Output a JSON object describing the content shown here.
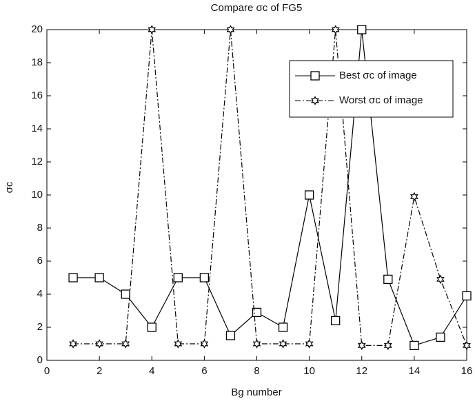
{
  "chart_data": {
    "type": "line",
    "title": "Compare σc of FG5",
    "x_label": "Bg number",
    "y_label": "σc",
    "x": [
      1,
      2,
      3,
      4,
      5,
      6,
      7,
      8,
      9,
      10,
      11,
      12,
      13,
      14,
      15,
      16
    ],
    "series": [
      {
        "name": "Best σc of image",
        "color": "#000000",
        "dash": "solid",
        "marker": "square",
        "values": [
          5,
          5,
          4,
          2,
          5,
          5,
          1.5,
          2.9,
          2,
          10,
          2.4,
          20,
          4.9,
          0.9,
          1.4,
          3.9
        ]
      },
      {
        "name": "Worst σc of image",
        "color": "#000000",
        "dash": "dashdot",
        "marker": "hexagram",
        "values": [
          1,
          1,
          1,
          20,
          1,
          1,
          20,
          1,
          1,
          1,
          20,
          0.9,
          0.9,
          9.9,
          4.9,
          0.9
        ]
      }
    ],
    "xlim": [
      0,
      16
    ],
    "xticks": [
      0,
      2,
      4,
      6,
      8,
      10,
      12,
      14,
      16
    ],
    "ylim": [
      0,
      20
    ],
    "yticks": [
      0,
      2,
      4,
      6,
      8,
      10,
      12,
      14,
      16,
      18,
      20
    ],
    "grid": false,
    "legend": "upper right"
  }
}
